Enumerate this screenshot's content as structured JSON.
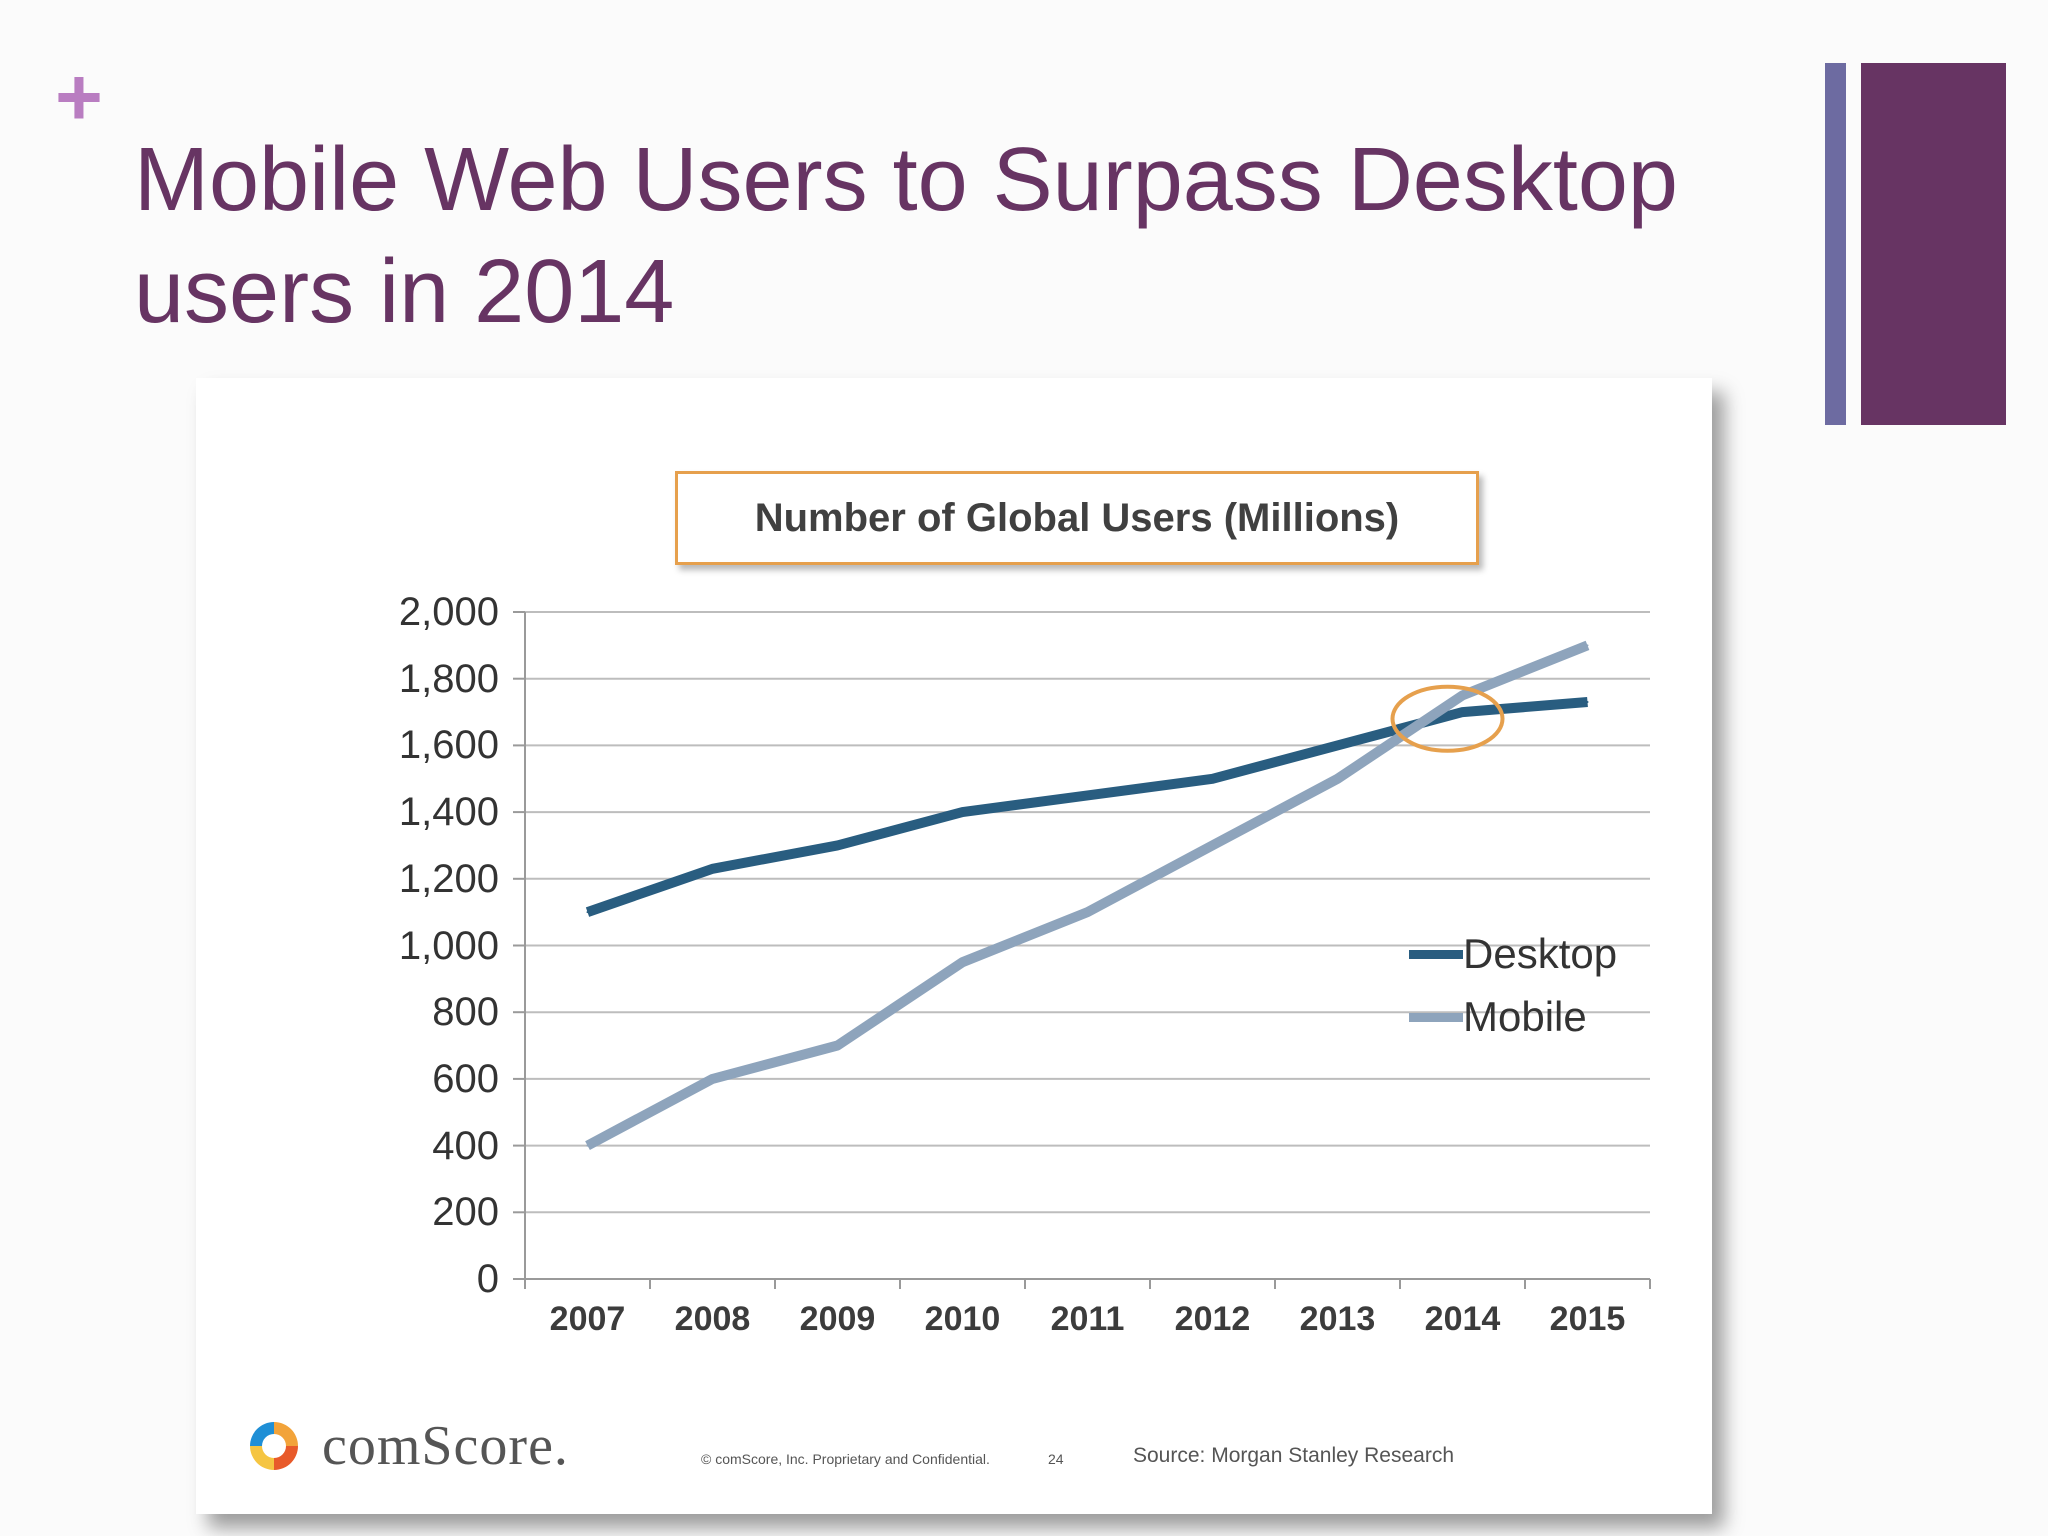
{
  "slide": {
    "plus": "+",
    "title_line1": "Mobile Web Users to Surpass Desktop",
    "title_line2": "users in 2014",
    "accent_colors": {
      "thin_bar": "#6d6ba1",
      "wide_bar": "#673463",
      "plus": "#b97dc1"
    }
  },
  "chart_data": {
    "type": "line",
    "title": "Number of Global Users (Millions)",
    "categories": [
      "2007",
      "2008",
      "2009",
      "2010",
      "2011",
      "2012",
      "2013",
      "2014",
      "2015"
    ],
    "series": [
      {
        "name": "Desktop",
        "color": "#295d80",
        "values": [
          1100,
          1230,
          1300,
          1400,
          1450,
          1500,
          1600,
          1700,
          1730
        ]
      },
      {
        "name": "Mobile",
        "color": "#8ea4bc",
        "values": [
          400,
          600,
          700,
          950,
          1100,
          1300,
          1500,
          1750,
          1900
        ]
      }
    ],
    "ylim": [
      0,
      2000
    ],
    "yticks": [
      0,
      200,
      400,
      600,
      800,
      1000,
      1200,
      1400,
      1600,
      1800,
      2000
    ],
    "ytick_labels": [
      "0",
      "200",
      "400",
      "600",
      "800",
      "1,000",
      "1,200",
      "1,400",
      "1,600",
      "1,800",
      "2,000"
    ],
    "grid": true,
    "legend_position": "right",
    "annotation": {
      "type": "circle",
      "near_category": "2014",
      "near_value": 1680,
      "color": "#e6a04d"
    }
  },
  "footer": {
    "brand": "comScore.",
    "confidential": "© comScore, Inc. Proprietary and Confidential.",
    "page_number": "24",
    "source": "Source: Morgan Stanley Research"
  }
}
